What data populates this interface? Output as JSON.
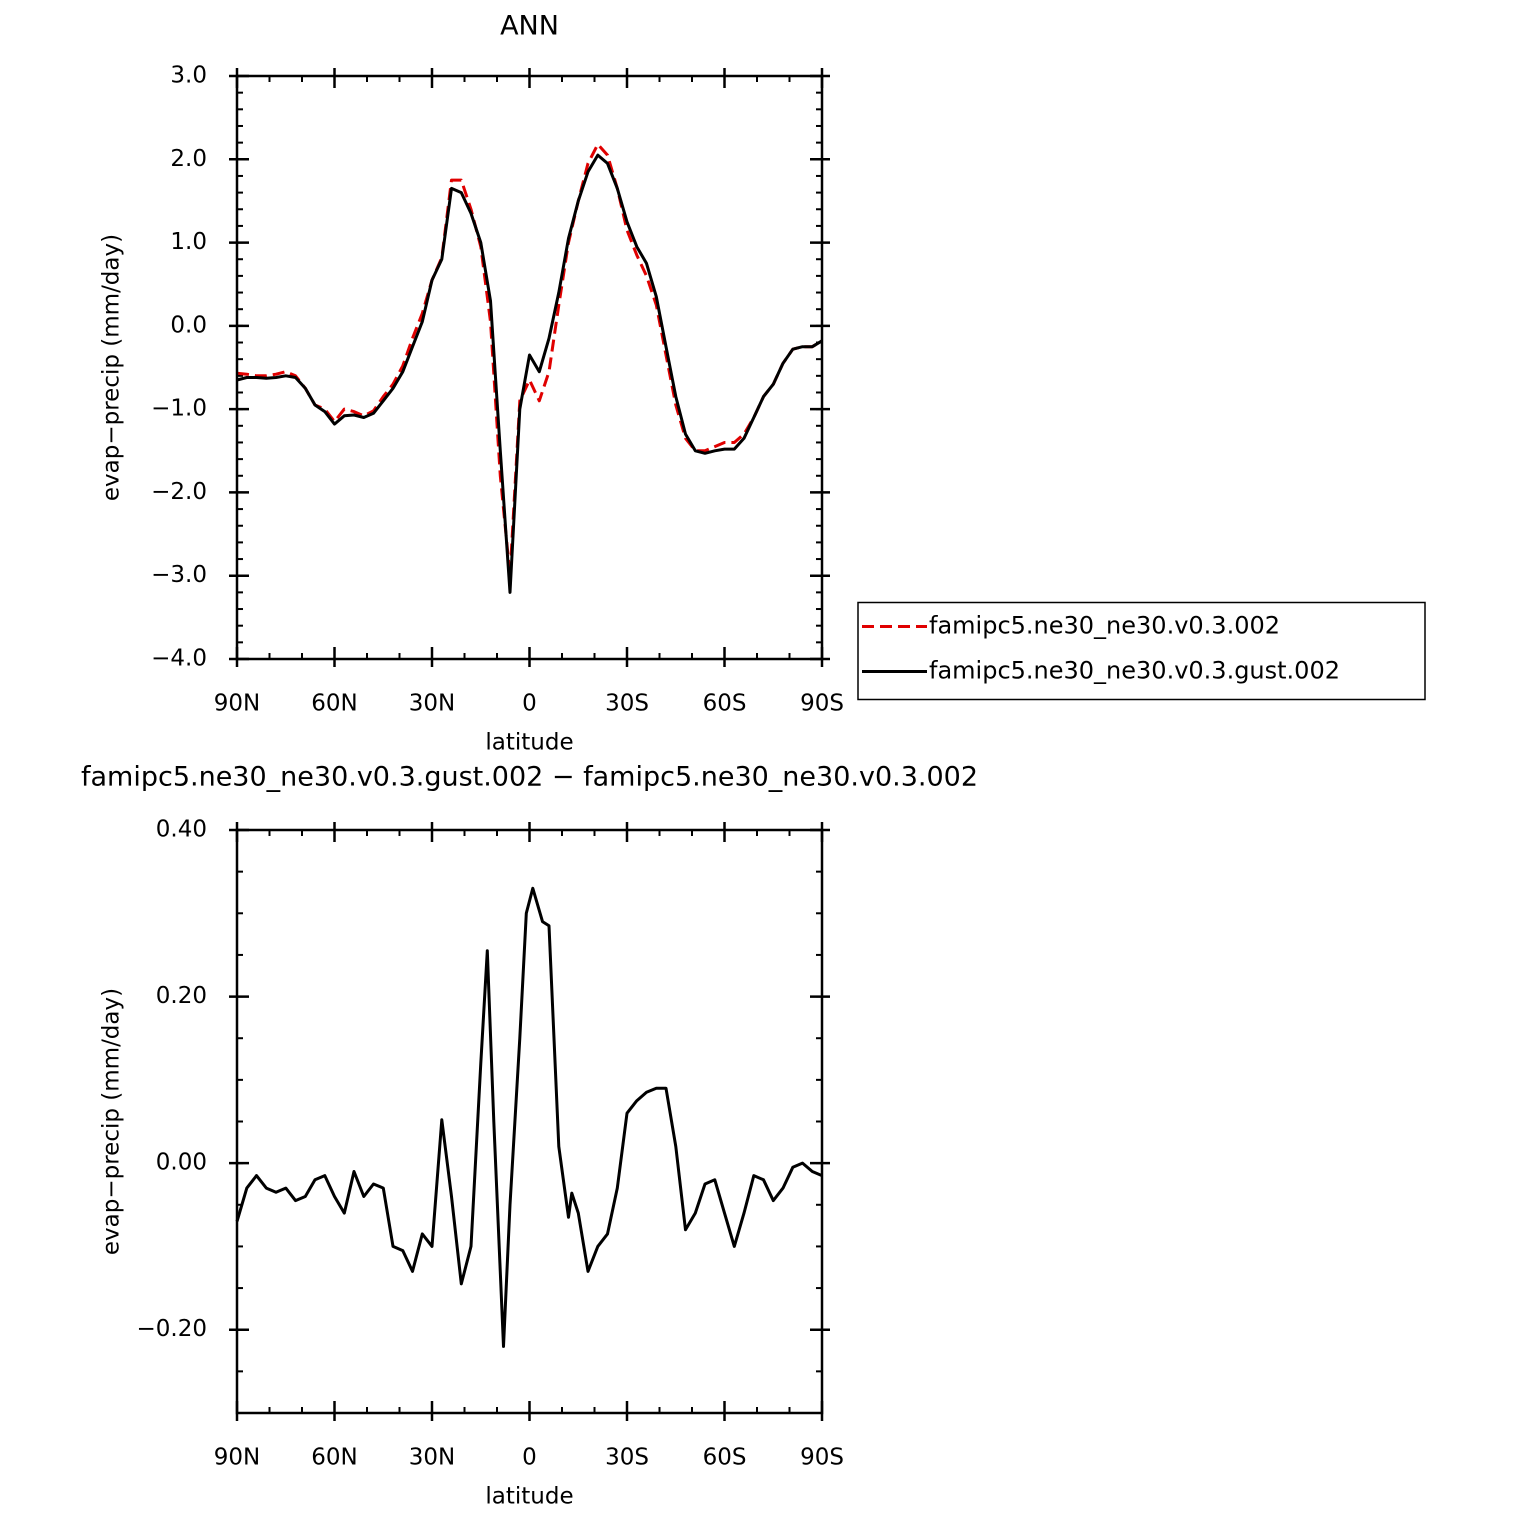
{
  "chart_data": [
    {
      "type": "line",
      "title": "ANN",
      "xlabel": "latitude",
      "ylabel": "evap−precip (mm/day)",
      "x": [
        90,
        87,
        84,
        81,
        78,
        75,
        72,
        69,
        66,
        63,
        60,
        57,
        54,
        51,
        48,
        45,
        42,
        39,
        36,
        33,
        30,
        27,
        24,
        21,
        18,
        15,
        12,
        9,
        6,
        3,
        0,
        -3,
        -6,
        -9,
        -12,
        -15,
        -18,
        -21,
        -24,
        -27,
        -30,
        -33,
        -36,
        -39,
        -42,
        -45,
        -48,
        -51,
        -54,
        -57,
        -60,
        -63,
        -66,
        -69,
        -72,
        -75,
        -78,
        -81,
        -84,
        -87,
        -90
      ],
      "series": [
        {
          "name": "famipc5.ne30_ne30.v0.3.002",
          "color": "#e00000",
          "dashed": true,
          "values": [
            -0.57,
            -0.58,
            -0.6,
            -0.6,
            -0.58,
            -0.55,
            -0.6,
            -0.75,
            -0.95,
            -1.0,
            -1.15,
            -1.0,
            -1.03,
            -1.08,
            -1.02,
            -0.85,
            -0.7,
            -0.48,
            -0.15,
            0.15,
            0.55,
            0.82,
            1.75,
            1.75,
            1.4,
            0.95,
            0.05,
            -1.8,
            -3.0,
            -0.9,
            -0.65,
            -0.9,
            -0.55,
            0.25,
            1.0,
            1.5,
            1.95,
            2.18,
            2.05,
            1.65,
            1.15,
            0.85,
            0.6,
            0.25,
            -0.35,
            -0.95,
            -1.35,
            -1.5,
            -1.5,
            -1.45,
            -1.4,
            -1.4,
            -1.3,
            -1.1,
            -0.85,
            -0.7,
            -0.45,
            -0.28,
            -0.25,
            -0.25,
            -0.18
          ]
        },
        {
          "name": "famipc5.ne30_ne30.v0.3.gust.002",
          "color": "#000000",
          "dashed": false,
          "values": [
            -0.65,
            -0.62,
            -0.62,
            -0.63,
            -0.62,
            -0.6,
            -0.62,
            -0.75,
            -0.95,
            -1.03,
            -1.18,
            -1.08,
            -1.07,
            -1.1,
            -1.05,
            -0.9,
            -0.75,
            -0.55,
            -0.25,
            0.05,
            0.55,
            0.8,
            1.65,
            1.6,
            1.35,
            1.0,
            0.3,
            -1.5,
            -3.2,
            -1.0,
            -0.35,
            -0.55,
            -0.15,
            0.4,
            1.05,
            1.5,
            1.85,
            2.05,
            1.95,
            1.65,
            1.25,
            0.95,
            0.75,
            0.35,
            -0.25,
            -0.85,
            -1.3,
            -1.5,
            -1.53,
            -1.5,
            -1.48,
            -1.48,
            -1.35,
            -1.1,
            -0.85,
            -0.7,
            -0.45,
            -0.28,
            -0.25,
            -0.25,
            -0.18
          ]
        }
      ],
      "xlim": [
        90,
        -90
      ],
      "xticks": [
        {
          "value": 90,
          "label": "90N"
        },
        {
          "value": 60,
          "label": "60N"
        },
        {
          "value": 30,
          "label": "30N"
        },
        0,
        {
          "value": -30,
          "label": "30S"
        },
        {
          "value": -60,
          "label": "60S"
        },
        {
          "value": -90,
          "label": "90S"
        }
      ],
      "ylim": [
        -4,
        3
      ],
      "yticks": [
        {
          "value": -4,
          "label": "−4.0"
        },
        {
          "value": -3,
          "label": "−3.0"
        },
        {
          "value": -2,
          "label": "−2.0"
        },
        {
          "value": -1,
          "label": "−1.0"
        },
        {
          "value": 0,
          "label": "0.0"
        },
        {
          "value": 1,
          "label": "1.0"
        },
        {
          "value": 2,
          "label": "2.0"
        },
        {
          "value": 3,
          "label": "3.0"
        }
      ],
      "legend": "right"
    },
    {
      "type": "line",
      "title": "famipc5.ne30_ne30.v0.3.gust.002 − famipc5.ne30_ne30.v0.3.002",
      "xlabel": "latitude",
      "ylabel": "evap−precip (mm/day)",
      "x": [
        90,
        87,
        84,
        81,
        78,
        75,
        72,
        69,
        66,
        63,
        60,
        57,
        54,
        51,
        48,
        45,
        42,
        39,
        36,
        33,
        30,
        27,
        24,
        21,
        18,
        15,
        13,
        11,
        8,
        6,
        3,
        1,
        -1,
        -4,
        -6,
        -9,
        -12,
        -13,
        -15,
        -18,
        -21,
        -24,
        -27,
        -30,
        -33,
        -36,
        -39,
        -42,
        -45,
        -48,
        -51,
        -54,
        -57,
        -60,
        -63,
        -66,
        -69,
        -72,
        -75,
        -78,
        -81,
        -84,
        -87,
        -90
      ],
      "series": [
        {
          "color": "#000000",
          "dashed": false,
          "values": [
            -0.07,
            -0.03,
            -0.015,
            -0.03,
            -0.035,
            -0.03,
            -0.045,
            -0.04,
            -0.02,
            -0.015,
            -0.04,
            -0.06,
            -0.01,
            -0.04,
            -0.025,
            -0.03,
            -0.1,
            -0.105,
            -0.13,
            -0.085,
            -0.1,
            0.052,
            -0.04,
            -0.145,
            -0.1,
            0.12,
            0.255,
            0.05,
            -0.22,
            -0.05,
            0.15,
            0.3,
            0.33,
            0.29,
            0.285,
            0.02,
            -0.065,
            -0.036,
            -0.06,
            -0.13,
            -0.1,
            -0.085,
            -0.03,
            0.06,
            0.075,
            0.085,
            0.09,
            0.09,
            0.02,
            -0.08,
            -0.06,
            -0.025,
            -0.02,
            -0.06,
            -0.1,
            -0.06,
            -0.015,
            -0.02,
            -0.045,
            -0.03,
            -0.005,
            0.0,
            -0.01,
            -0.015
          ]
        }
      ],
      "xlim": [
        90,
        -90
      ],
      "xticks": [
        {
          "value": 90,
          "label": "90N"
        },
        {
          "value": 60,
          "label": "60N"
        },
        {
          "value": 30,
          "label": "30N"
        },
        0,
        {
          "value": -30,
          "label": "30S"
        },
        {
          "value": -60,
          "label": "60S"
        },
        {
          "value": -90,
          "label": "90S"
        }
      ],
      "ylim": [
        -0.3,
        0.4
      ],
      "yticks": [
        {
          "value": -0.2,
          "label": "−0.20"
        },
        {
          "value": 0,
          "label": "0.00"
        },
        {
          "value": 0.2,
          "label": "0.20"
        },
        {
          "value": 0.4,
          "label": "0.40"
        }
      ]
    }
  ]
}
